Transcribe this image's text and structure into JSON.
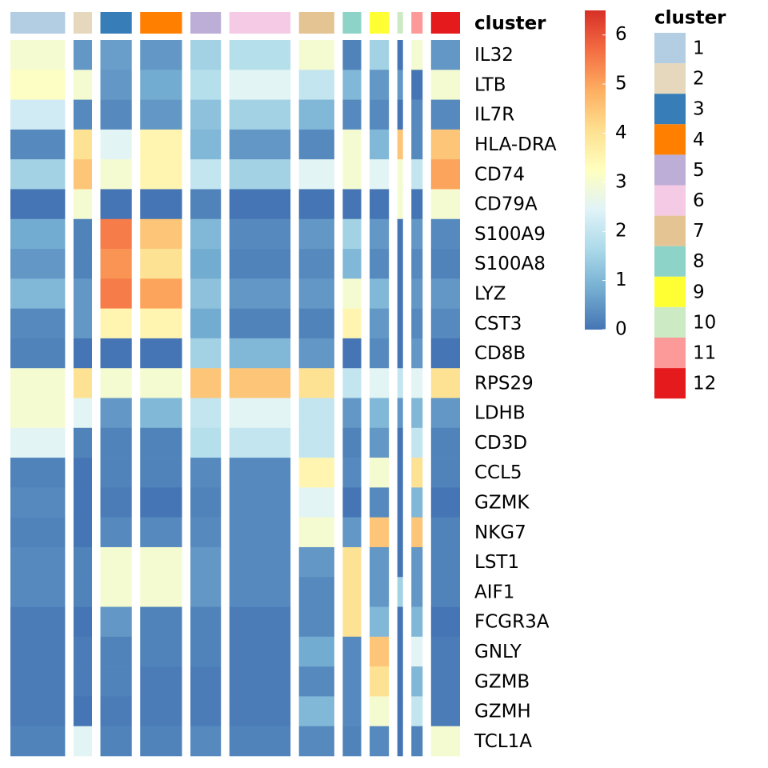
{
  "chart_data": {
    "type": "heatmap",
    "annotation_label": "cluster",
    "legend_title": "cluster",
    "columns": [
      "1",
      "2",
      "3",
      "4",
      "5",
      "6",
      "7",
      "8",
      "9",
      "10",
      "11",
      "12"
    ],
    "column_colors": [
      "#b3cde3",
      "#e5d8bd",
      "#377eb8",
      "#ff7f00",
      "#bcaed6",
      "#f4cae4",
      "#e5c494",
      "#8dd3c7",
      "#ffff33",
      "#ccebc5",
      "#fb9a99",
      "#e41a1c"
    ],
    "column_sizes": [
      68,
      23,
      39,
      52,
      38,
      76,
      44,
      23,
      24,
      7,
      14,
      36
    ],
    "rows": [
      "IL32",
      "LTB",
      "IL7R",
      "HLA-DRA",
      "CD74",
      "CD79A",
      "S100A9",
      "S100A8",
      "LYZ",
      "CST3",
      "CD8B",
      "RPS29",
      "LDHB",
      "CD3D",
      "CCL5",
      "GZMK",
      "NKG7",
      "LST1",
      "AIF1",
      "FCGR3A",
      "GNLY",
      "GZMB",
      "GZMH",
      "TCL1A"
    ],
    "values": [
      [
        3,
        0.5,
        0.6,
        0.5,
        1.5,
        1.8,
        3,
        0.2,
        1.5,
        0,
        3,
        0.5
      ],
      [
        3.2,
        3,
        0.5,
        0.8,
        1.8,
        2.5,
        2,
        1,
        0.5,
        0.5,
        0,
        3
      ],
      [
        2.2,
        0.3,
        0.3,
        0.5,
        1.2,
        1.5,
        1,
        0.3,
        0.3,
        0,
        0.3,
        0.3
      ],
      [
        0.3,
        4,
        2.5,
        3.5,
        1,
        0.5,
        0.3,
        3,
        1,
        4.5,
        0.3,
        4.5
      ],
      [
        1.5,
        4.5,
        3,
        3.5,
        2,
        1.5,
        2.5,
        3,
        2.5,
        3,
        2,
        5
      ],
      [
        0,
        3,
        0,
        0,
        0.2,
        0,
        0,
        0,
        0,
        3,
        0,
        3
      ],
      [
        0.8,
        0.2,
        5.5,
        4.5,
        1,
        0.3,
        0.5,
        1.5,
        0.5,
        0,
        0.5,
        0.3
      ],
      [
        0.5,
        0.2,
        5.2,
        4,
        0.8,
        0.2,
        0.3,
        1,
        0.3,
        0,
        0.3,
        0.2
      ],
      [
        1,
        0.5,
        5.5,
        5,
        1.2,
        0.5,
        0.5,
        3,
        1,
        0,
        0.5,
        0.5
      ],
      [
        0.3,
        0.5,
        3.5,
        3.5,
        0.8,
        0.2,
        0.2,
        3.5,
        0.5,
        0,
        0.3,
        0.3
      ],
      [
        0.2,
        0,
        0,
        0,
        1.5,
        1,
        0.5,
        0,
        0.3,
        0,
        0.5,
        0
      ],
      [
        3,
        4,
        3,
        3,
        4.5,
        4.5,
        4,
        2,
        2.5,
        2,
        2.5,
        4
      ],
      [
        3,
        2.5,
        0.5,
        1,
        2,
        2.5,
        2,
        0.5,
        1,
        0.5,
        1,
        0.5
      ],
      [
        2.5,
        0.2,
        0.2,
        0.2,
        1.8,
        2,
        2,
        0.2,
        0.5,
        0,
        2,
        0.2
      ],
      [
        0.2,
        0,
        0.2,
        0.2,
        0.3,
        0.3,
        3.5,
        0.3,
        3,
        0,
        4,
        0.2
      ],
      [
        0.3,
        0,
        0.1,
        0,
        0.2,
        0.3,
        2.5,
        0,
        0.3,
        0,
        1,
        0
      ],
      [
        0.2,
        0,
        0.3,
        0.3,
        0.3,
        0.3,
        3,
        0.5,
        4.5,
        0,
        4.5,
        0.2
      ],
      [
        0.3,
        0.2,
        3,
        3,
        0.5,
        0.3,
        0.5,
        4,
        0.5,
        0,
        0.5,
        0.2
      ],
      [
        0.3,
        0.2,
        3,
        3,
        0.5,
        0.3,
        0.3,
        4,
        0.5,
        1.5,
        0.5,
        0.2
      ],
      [
        0.1,
        0,
        0.5,
        0.2,
        0.2,
        0.1,
        0.3,
        4,
        1,
        0,
        1,
        0
      ],
      [
        0.1,
        0.1,
        0.2,
        0.2,
        0.2,
        0.1,
        0.8,
        0.3,
        4.5,
        0,
        2.5,
        0.1
      ],
      [
        0.1,
        0.1,
        0.2,
        0.1,
        0.1,
        0.1,
        0.3,
        0.3,
        4,
        0,
        1,
        0.1
      ],
      [
        0.1,
        0,
        0.1,
        0.1,
        0.1,
        0.1,
        1,
        0.3,
        3,
        0,
        2,
        0.1
      ],
      [
        0.2,
        2.5,
        0.2,
        0.2,
        0.3,
        0.2,
        0.3,
        0.2,
        0.3,
        0,
        0.2,
        3
      ]
    ],
    "zlim": [
      0,
      6.5
    ],
    "zticks": [
      0,
      1,
      2,
      3,
      4,
      5,
      6
    ],
    "colormap": [
      "#4575b4",
      "#74add1",
      "#abd9e9",
      "#e0f3f8",
      "#ffffbf",
      "#fee090",
      "#fdae61",
      "#f46d43",
      "#d73027"
    ]
  }
}
